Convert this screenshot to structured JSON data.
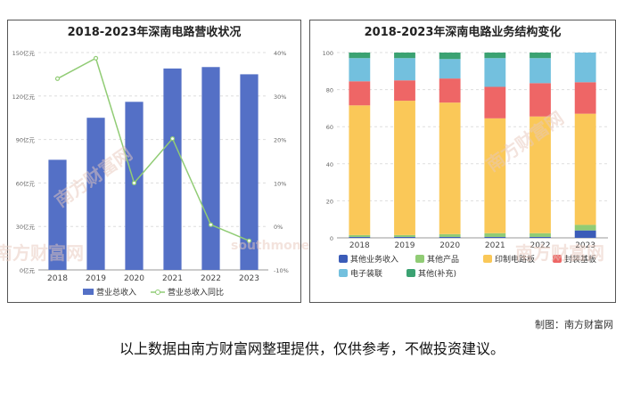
{
  "left_chart_title": "2018-2023年深南电路营收状况",
  "right_chart_title": "2018-2023年深南电路业务结构变化",
  "credit": "制图：南方财富网",
  "caption": "以上数据由南方财富网整理提供，仅供参考，不做投资建议。",
  "watermark_cn": "南方财富网",
  "watermark_en": "southmoney.com",
  "colors": {
    "bar": "#5470c6",
    "line": "#91cc75",
    "seg": [
      "#3b5cb8",
      "#91cc75",
      "#fac858",
      "#ee6666",
      "#73c0de",
      "#3ba272"
    ]
  },
  "chart_data": [
    {
      "type": "bar",
      "title": "2018-2023年深南电路营收状况",
      "categories": [
        "2018",
        "2019",
        "2020",
        "2021",
        "2022",
        "2023"
      ],
      "y_ticks": [
        "0亿元",
        "30亿元",
        "60亿元",
        "90亿元",
        "120亿元",
        "150亿元"
      ],
      "y2_ticks": [
        "-10%",
        "0%",
        "10%",
        "20%",
        "30%",
        "40%"
      ],
      "ylim": [
        0,
        150
      ],
      "y2lim": [
        -10,
        40
      ],
      "series": [
        {
          "name": "营业总收入",
          "type": "bar",
          "values": [
            76,
            105,
            116,
            139,
            140,
            135
          ]
        },
        {
          "name": "营业总收入同比",
          "type": "line",
          "axis": "right",
          "values": [
            34,
            38.7,
            10,
            20.2,
            0.4,
            -3.3
          ]
        }
      ]
    },
    {
      "type": "bar",
      "stacked": true,
      "title": "2018-2023年深南电路业务结构变化",
      "categories": [
        "2018",
        "2019",
        "2020",
        "2021",
        "2022",
        "2023"
      ],
      "y_ticks": [
        "0",
        "20",
        "40",
        "60",
        "80",
        "100"
      ],
      "ylim": [
        0,
        100
      ],
      "series": [
        {
          "name": "其他业务收入",
          "values": [
            0.5,
            0.5,
            0.5,
            0.5,
            0.5,
            4
          ]
        },
        {
          "name": "其他产品",
          "values": [
            1,
            1,
            1.5,
            2,
            2,
            3
          ]
        },
        {
          "name": "印制电路板",
          "values": [
            70,
            72.5,
            71,
            62,
            63,
            60
          ]
        },
        {
          "name": "封装基板",
          "values": [
            13,
            11,
            13,
            17,
            18,
            17
          ]
        },
        {
          "name": "电子装联",
          "values": [
            12.5,
            12,
            10.5,
            15.5,
            13.5,
            16
          ]
        },
        {
          "name": "其他(补充)",
          "values": [
            3,
            3,
            3.5,
            3,
            3,
            0
          ]
        }
      ]
    }
  ]
}
